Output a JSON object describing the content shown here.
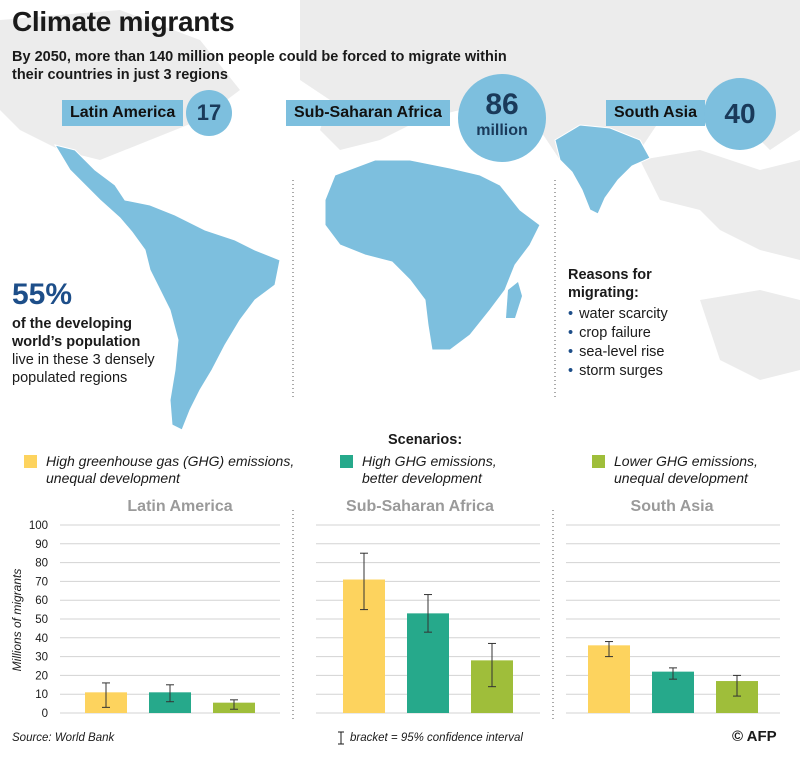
{
  "header": {
    "title": "Climate migrants",
    "subtitle": "By 2050, more than 140 million people could be forced to migrate within their countries in just 3 regions"
  },
  "regions": [
    {
      "name": "Latin America",
      "value": "17",
      "unit": ""
    },
    {
      "name": "Sub-Saharan Africa",
      "value": "86",
      "unit": "million"
    },
    {
      "name": "South Asia",
      "value": "40",
      "unit": ""
    }
  ],
  "stat": {
    "big": "55%",
    "line1": "of the developing",
    "line2": "world’s population",
    "line3": "live in these 3 densely",
    "line4": "populated regions"
  },
  "reasons": {
    "title": "Reasons for migrating:",
    "items": [
      "water scarcity",
      "crop failure",
      "sea-level rise",
      "storm surges"
    ]
  },
  "scenarios": {
    "title": "Scenarios:",
    "items": [
      {
        "line1": "High greenhouse gas (GHG) emissions,",
        "line2": "unequal development",
        "color": "#fdd35e"
      },
      {
        "line1": "High GHG emissions,",
        "line2": "better development",
        "color": "#26a98b"
      },
      {
        "line1": "Lower GHG emissions,",
        "line2": "unequal development",
        "color": "#9fbe3a"
      }
    ]
  },
  "colors": {
    "map": "#7dbfde",
    "background_map": "#ececec",
    "accent": "#1d4e89",
    "gridline": "#d3d3d3",
    "panel_title": "#9a9a9a"
  },
  "chart_data": {
    "type": "bar",
    "ylabel": "Millions of migrants",
    "ylim": [
      0,
      100
    ],
    "yticks": [
      0,
      10,
      20,
      30,
      40,
      50,
      60,
      70,
      80,
      90,
      100
    ],
    "grid": true,
    "panels": [
      {
        "title": "Latin America",
        "series": [
          {
            "value": 11,
            "low": 3,
            "high": 16
          },
          {
            "value": 11,
            "low": 6,
            "high": 15
          },
          {
            "value": 5.5,
            "low": 2,
            "high": 7
          }
        ]
      },
      {
        "title": "Sub-Saharan Africa",
        "series": [
          {
            "value": 71,
            "low": 55,
            "high": 85
          },
          {
            "value": 53,
            "low": 43,
            "high": 63
          },
          {
            "value": 28,
            "low": 14,
            "high": 37
          }
        ]
      },
      {
        "title": "South Asia",
        "series": [
          {
            "value": 36,
            "low": 30,
            "high": 38
          },
          {
            "value": 22,
            "low": 18,
            "high": 24
          },
          {
            "value": 17,
            "low": 9,
            "high": 20
          }
        ]
      }
    ]
  },
  "footer": {
    "source": "Source: World Bank",
    "bracket_note": "bracket = 95% confidence interval",
    "credit": "© AFP"
  }
}
